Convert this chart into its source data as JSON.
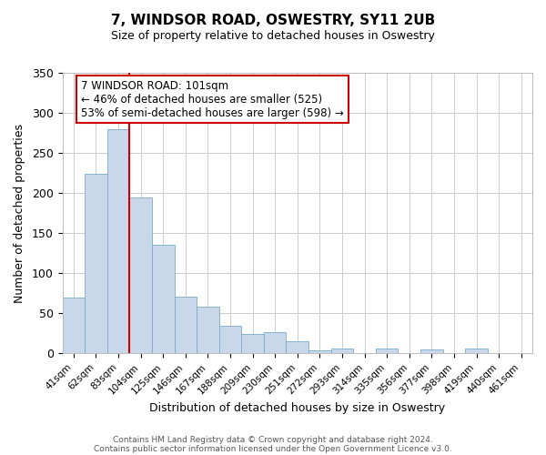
{
  "title": "7, WINDSOR ROAD, OSWESTRY, SY11 2UB",
  "subtitle": "Size of property relative to detached houses in Oswestry",
  "xlabel": "Distribution of detached houses by size in Oswestry",
  "ylabel": "Number of detached properties",
  "bar_labels": [
    "41sqm",
    "62sqm",
    "83sqm",
    "104sqm",
    "125sqm",
    "146sqm",
    "167sqm",
    "188sqm",
    "209sqm",
    "230sqm",
    "251sqm",
    "272sqm",
    "293sqm",
    "314sqm",
    "335sqm",
    "356sqm",
    "377sqm",
    "398sqm",
    "419sqm",
    "440sqm",
    "461sqm"
  ],
  "bar_values": [
    70,
    224,
    280,
    194,
    135,
    71,
    58,
    35,
    24,
    27,
    15,
    4,
    6,
    0,
    6,
    0,
    5,
    0,
    6,
    0,
    1
  ],
  "bar_color": "#c8d8ea",
  "bar_edge_color": "#7aaac8",
  "vline_color": "#cc0000",
  "annotation_text": "7 WINDSOR ROAD: 101sqm\n← 46% of detached houses are smaller (525)\n53% of semi-detached houses are larger (598) →",
  "annotation_box_edgecolor": "#cc0000",
  "ylim": [
    0,
    350
  ],
  "yticks": [
    0,
    50,
    100,
    150,
    200,
    250,
    300,
    350
  ],
  "footer_line1": "Contains HM Land Registry data © Crown copyright and database right 2024.",
  "footer_line2": "Contains public sector information licensed under the Open Government Licence v3.0.",
  "background_color": "#ffffff",
  "grid_color": "#cccccc"
}
